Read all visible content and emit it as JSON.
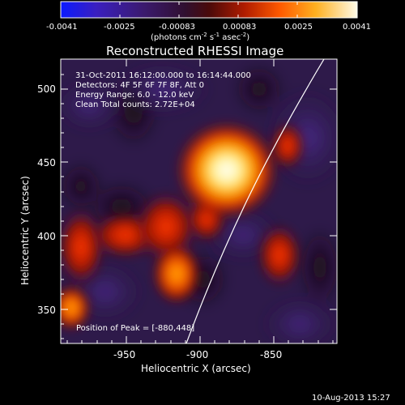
{
  "colorbar": {
    "ticks": [
      "-0.0041",
      "-0.0025",
      "-0.00083",
      "0.00083",
      "0.0025",
      "0.0041"
    ],
    "unit_main": "(photons cm",
    "unit_sup1": "-2",
    "unit_mid": " s",
    "unit_sup2": "-1",
    "unit_end": " asec",
    "unit_sup3": "-2",
    "unit_close": ")"
  },
  "title": "Reconstructed RHESSI Image",
  "info": {
    "line1": "31-Oct-2011 16:12:00.000 to 16:14:44.000",
    "line2": "Detectors: 4F 5F 6F 7F 8F, Att 0",
    "line3": "Energy Range: 6.0 - 12.0 keV",
    "line4": "Clean    Total counts: 2.72E+04",
    "peak": "Position of Peak = [-880,448]"
  },
  "axes": {
    "xlabel": "Heliocentric X (arcsec)",
    "ylabel": "Heliocentric Y (arcsec)",
    "xticks": [
      "-950",
      "-900",
      "-850"
    ],
    "yticks": [
      "350",
      "400",
      "450",
      "500"
    ]
  },
  "footer": {
    "date": "10-Aug-2013 15:27"
  },
  "colors": {
    "background": "#000000",
    "colormap": [
      "#1a1aff",
      "#2d1a8f",
      "#3a1a5a",
      "#6b0c0c",
      "#c81e00",
      "#ff8c00",
      "#fff5a0",
      "#ffffff"
    ]
  }
}
